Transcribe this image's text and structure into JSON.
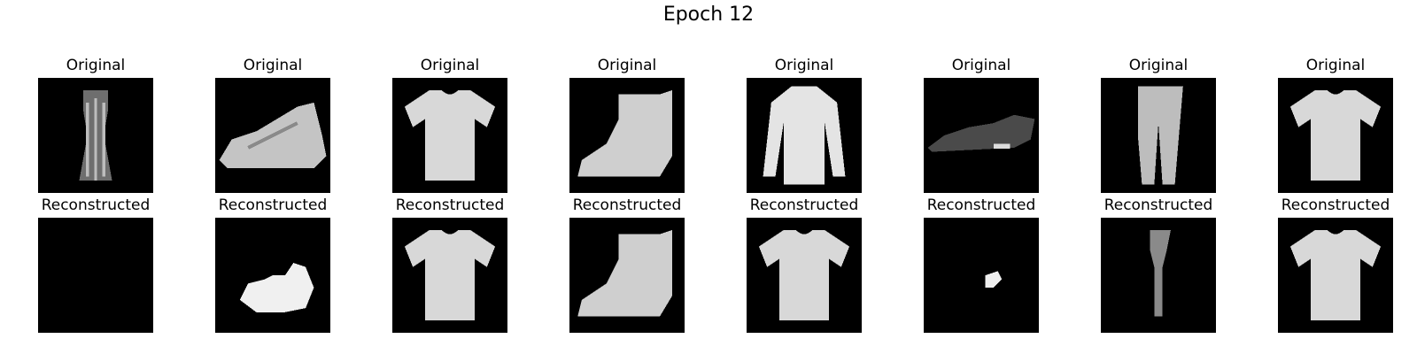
{
  "figure": {
    "title": "Epoch 12"
  },
  "labels": {
    "original": "Original",
    "reconstructed": "Reconstructed"
  },
  "colors": {
    "background": "#000000",
    "figure_bg": "#ffffff"
  },
  "columns": [
    {
      "original": "dress-icon",
      "reconstructed": "blank-icon"
    },
    {
      "original": "sneaker-icon",
      "reconstructed": "bag-blob-icon"
    },
    {
      "original": "tshirt-icon",
      "reconstructed": "tshirt-icon"
    },
    {
      "original": "ankle-boot-icon",
      "reconstructed": "ankle-boot-icon"
    },
    {
      "original": "coat-icon",
      "reconstructed": "tshirt-icon"
    },
    {
      "original": "sneaker-dark-icon",
      "reconstructed": "small-blob-icon"
    },
    {
      "original": "trouser-icon",
      "reconstructed": "trouser-faint-icon"
    },
    {
      "original": "tshirt-icon",
      "reconstructed": "tshirt-icon"
    }
  ]
}
